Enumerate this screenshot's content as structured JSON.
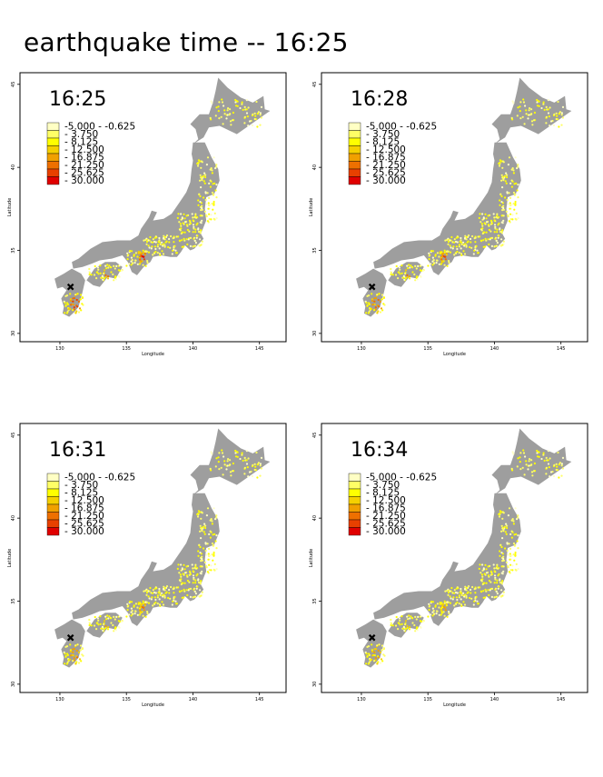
{
  "page": {
    "title": "earthquake time -- 16:25"
  },
  "axes": {
    "xlabel": "Longitude",
    "ylabel": "Latitude",
    "x_ticks": [
      "130",
      "135",
      "140",
      "145"
    ],
    "y_ticks": [
      "30",
      "35",
      "40",
      "45"
    ],
    "xlim": [
      127,
      147
    ],
    "ylim": [
      29.5,
      45.7
    ]
  },
  "legend": {
    "entries": [
      {
        "label": "-5.000 - -0.625",
        "color": "#ffffc4"
      },
      {
        "label": "- 3.750",
        "color": "#ffff66"
      },
      {
        "label": "- 8.125",
        "color": "#ffff00"
      },
      {
        "label": "- 12.500",
        "color": "#f5d000"
      },
      {
        "label": "- 16.875",
        "color": "#f0a000"
      },
      {
        "label": "- 21.250",
        "color": "#ee7000"
      },
      {
        "label": "- 25.625",
        "color": "#e84000"
      },
      {
        "label": "- 30.000",
        "color": "#e00000"
      }
    ]
  },
  "epicenter": {
    "symbol": "x-mark",
    "lon": 130.8,
    "lat": 32.8
  },
  "colors": {
    "land": "#9e9e9e",
    "frame": "#000000"
  },
  "panels": [
    {
      "time": "16:25",
      "intensity": 1.0
    },
    {
      "time": "16:28",
      "intensity": 0.8
    },
    {
      "time": "16:31",
      "intensity": 0.6
    },
    {
      "time": "16:34",
      "intensity": 0.45
    }
  ]
}
